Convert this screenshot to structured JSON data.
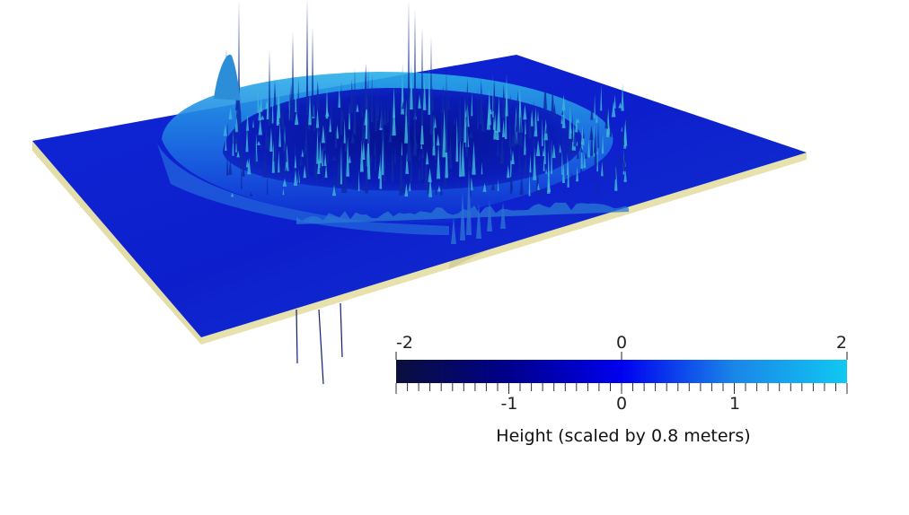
{
  "colorbar": {
    "title": "Height (scaled by 0.8 meters)",
    "range": [
      -2,
      2
    ],
    "top_ticks": [
      "-2",
      "0",
      "2"
    ],
    "bottom_ticks": [
      "-1",
      "0",
      "1"
    ],
    "gradient_stops": [
      {
        "value": -2,
        "color": "#0a0f3c"
      },
      {
        "value": -1,
        "color": "#00008c"
      },
      {
        "value": 0,
        "color": "#0000f0"
      },
      {
        "value": 1,
        "color": "#1a86e8"
      },
      {
        "value": 2,
        "color": "#10c8f2"
      }
    ]
  },
  "colors": {
    "surface_deep": "#0a1cc8",
    "surface_mid": "#1238d8",
    "surface_light": "#1e9ee6",
    "base_sand": "#ddd8a0",
    "spike": "#0e2aa8",
    "spike_tip": "#3cb4d8"
  }
}
